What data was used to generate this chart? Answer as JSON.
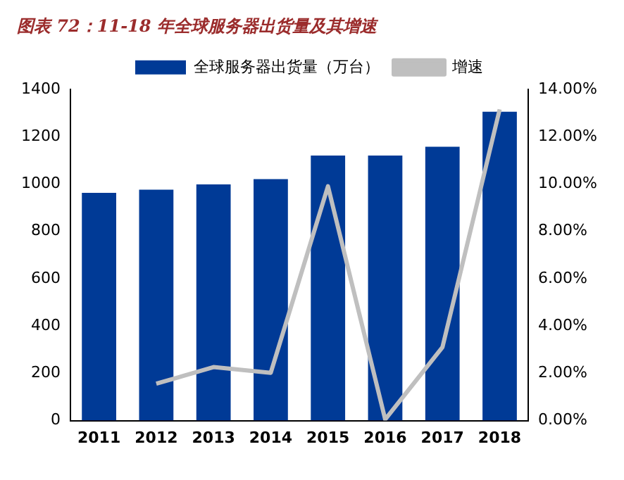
{
  "chart_data": {
    "type": "bar",
    "title": "图表 72：11-18 年全球服务器出货量及其增速",
    "categories": [
      "2011",
      "2012",
      "2013",
      "2014",
      "2015",
      "2016",
      "2017",
      "2018"
    ],
    "series": [
      {
        "name": "全球服务器出货量（万台）",
        "color": "#003a96",
        "values": [
          962,
          976,
          998,
          1020,
          1120,
          1120,
          1157,
          1305
        ]
      },
      {
        "name": "增速",
        "type": "line",
        "axis": "y2",
        "color": "#bfbfbf",
        "values": [
          null,
          1.56,
          2.26,
          2.02,
          9.9,
          0.05,
          3.1,
          13.15
        ]
      }
    ],
    "ylim": [
      0,
      1400
    ],
    "yticks": [
      0,
      200,
      400,
      600,
      800,
      1000,
      1200,
      1400
    ],
    "y2lim": [
      0,
      14
    ],
    "y2ticks": [
      {
        "value": 0,
        "label": "0.00%"
      },
      {
        "value": 2,
        "label": "2.00%"
      },
      {
        "value": 4,
        "label": "4.00%"
      },
      {
        "value": 6,
        "label": "6.00%"
      },
      {
        "value": 8,
        "label": "8.00%"
      },
      {
        "value": 10,
        "label": "10.00%"
      },
      {
        "value": 12,
        "label": "12.00%"
      },
      {
        "value": 14,
        "label": "14.00%"
      }
    ],
    "grid": false,
    "legend": "top",
    "marker": "none"
  }
}
